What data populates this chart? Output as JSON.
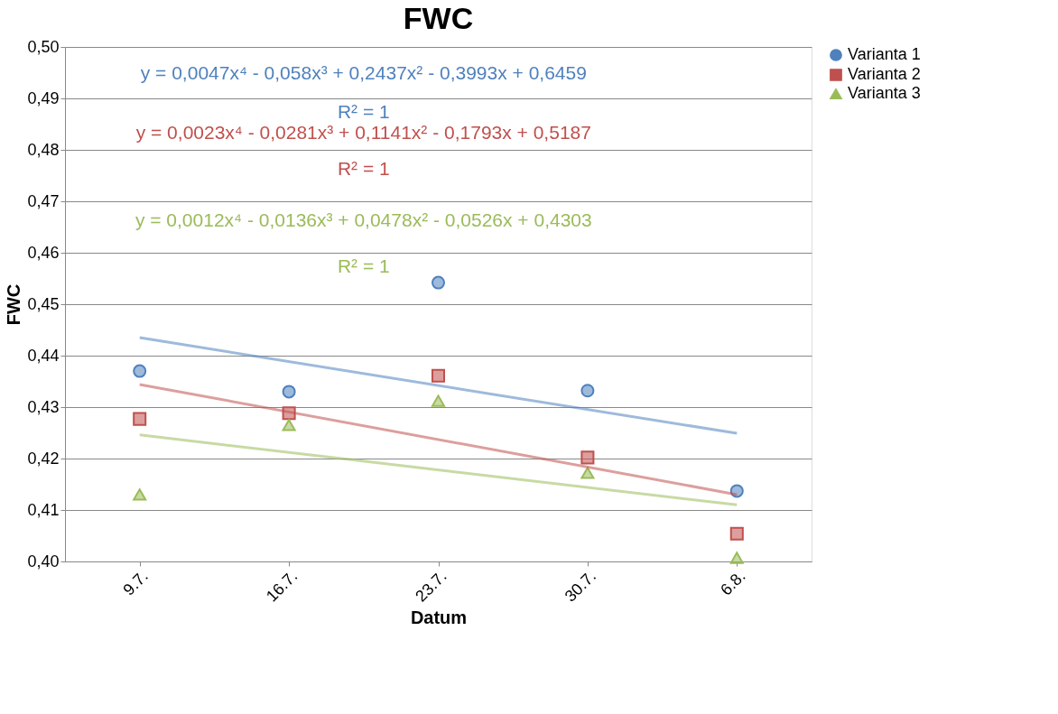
{
  "chart_data": {
    "type": "scatter",
    "title": "FWC",
    "xlabel": "Datum",
    "ylabel": "FWC",
    "categories": [
      "9.7.",
      "16.7.",
      "23.7.",
      "30.7.",
      "6.8."
    ],
    "series": [
      {
        "name": "Varianta 1",
        "color": "#4f81bd",
        "marker": "circle",
        "values": [
          0.437,
          0.433,
          0.4542,
          0.4332,
          0.4137
        ]
      },
      {
        "name": "Varianta 2",
        "color": "#c0504d",
        "marker": "square",
        "values": [
          0.4277,
          0.4288,
          0.4361,
          0.4202,
          0.4054
        ]
      },
      {
        "name": "Varianta 3",
        "color": "#9bbb59",
        "marker": "triangle",
        "values": [
          0.413,
          0.4265,
          0.4312,
          0.4172,
          0.4007
        ]
      },
      {
        "type": "line",
        "color": "#4f81bd",
        "marker": "none",
        "x": [
          "9.7.",
          "6.8."
        ],
        "values": [
          0.4435,
          0.4249
        ]
      },
      {
        "type": "line",
        "color": "#c0504d",
        "marker": "none",
        "x": [
          "9.7.",
          "6.8."
        ],
        "values": [
          0.4344,
          0.413
        ]
      },
      {
        "type": "line",
        "color": "#9bbb59",
        "marker": "none",
        "x": [
          "9.7.",
          "6.8."
        ],
        "values": [
          0.4246,
          0.411
        ]
      }
    ],
    "ylim": [
      0.4,
      0.5
    ],
    "yticks": [
      {
        "value": 0.4,
        "label": "0,40"
      },
      {
        "value": 0.41,
        "label": "0,41"
      },
      {
        "value": 0.42,
        "label": "0,42"
      },
      {
        "value": 0.43,
        "label": "0,43"
      },
      {
        "value": 0.44,
        "label": "0,44"
      },
      {
        "value": 0.45,
        "label": "0,45"
      },
      {
        "value": 0.46,
        "label": "0,46"
      },
      {
        "value": 0.47,
        "label": "0,47"
      },
      {
        "value": 0.48,
        "label": "0,48"
      },
      {
        "value": 0.49,
        "label": "0,49"
      },
      {
        "value": 0.5,
        "label": "0,50"
      }
    ],
    "grid": "y",
    "legend": "right",
    "annotations": [
      "y = 0,0047x⁴ - 0,058x³ + 0,2437x² - 0,3993x + 0,6459",
      "R² = 1",
      "y = 0,0023x⁴ - 0,0281x³ + 0,1141x² - 0,1793x + 0,5187",
      "R² = 1",
      "y = 0,0012x⁴ - 0,0136x³ + 0,0478x² - 0,0526x + 0,4303",
      "R² = 1"
    ]
  }
}
